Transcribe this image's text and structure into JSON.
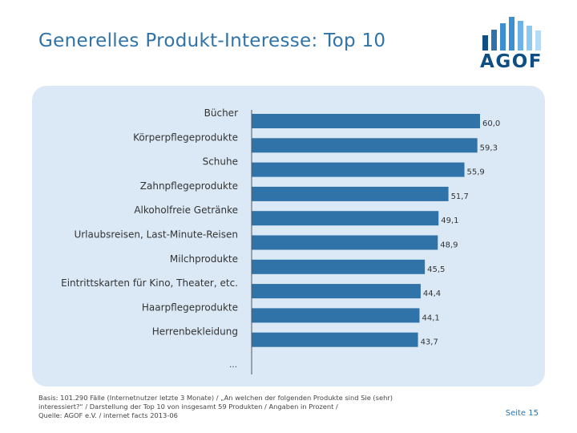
{
  "title": "Generelles Produkt-Interesse: Top 10",
  "logo_text": "AGOF",
  "colors": {
    "bar": "#2f73a8",
    "title": "#2f73a8",
    "panel": "#dbe9f6",
    "logo": "#0e4e82"
  },
  "chart_data": {
    "type": "bar",
    "orientation": "horizontal",
    "title": "Generelles Produkt-Interesse: Top 10",
    "categories": [
      "Bücher",
      "Körperpflegeprodukte",
      "Schuhe",
      "Zahnpflegeprodukte",
      "Alkoholfreie Getränke",
      "Urlaubsreisen, Last-Minute-Reisen",
      "Milchprodukte",
      "Eintrittskarten für Kino, Theater, etc.",
      "Haarpflegeprodukte",
      "Herrenbekleidung"
    ],
    "values": [
      60.0,
      59.3,
      55.9,
      51.7,
      49.1,
      48.9,
      45.5,
      44.4,
      44.1,
      43.7
    ],
    "value_labels": [
      "60,0",
      "59,3",
      "55,9",
      "51,7",
      "49,1",
      "48,9",
      "45,5",
      "44,4",
      "44,1",
      "43,7"
    ],
    "trailing_label": "…",
    "xlim": [
      0,
      60
    ],
    "xlabel": "",
    "ylabel": ""
  },
  "footer": {
    "note_line1": "Basis: 101.290 Fälle (Internetnutzer letzte 3 Monate) / „An welchen der folgenden Produkte sind Sie (sehr)",
    "note_line2": "interessiert?“ / Darstellung der Top 10 von insgesamt 59 Produkten / Angaben in Prozent /",
    "note_line3": "Quelle: AGOF e.V. / internet facts 2013-06",
    "page_number": "Seite 15"
  }
}
